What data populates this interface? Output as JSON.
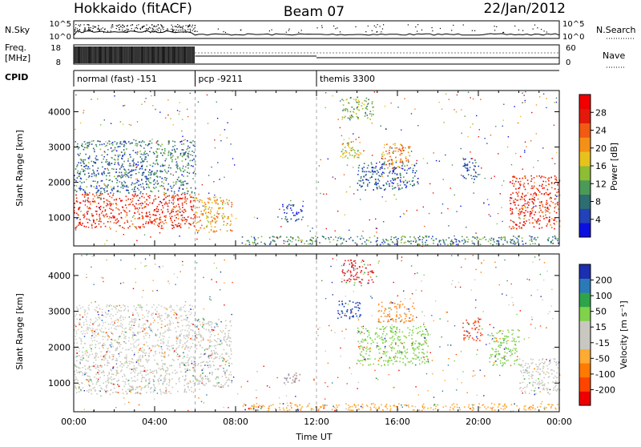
{
  "header": {
    "radar": "Hokkaido (fitACF)",
    "beam": "Beam 07",
    "date": "22/Jan/2012"
  },
  "top_strip": {
    "left_labels": [
      "N.Sky",
      "Freq.",
      "[MHz]",
      "CPID"
    ],
    "nsky_ticks": [
      "10^5",
      "10^0"
    ],
    "freq_ticks": [
      "18",
      "8"
    ],
    "nsearch_ticks": [
      "10^5",
      "10^0"
    ],
    "nave_ticks": [
      "60",
      "0"
    ],
    "right_labels": [
      "N.Search",
      "Nave"
    ],
    "cpid_segments": [
      {
        "label": "normal (fast) -151",
        "start": 0,
        "end": 6
      },
      {
        "label": "pcp -9211",
        "start": 6,
        "end": 12
      },
      {
        "label": "themis 3300",
        "start": 12,
        "end": 24
      }
    ]
  },
  "chart_data": [
    {
      "type": "heatmap",
      "name": "power",
      "ylabel": "Slant Range [km]",
      "ylim": [
        200,
        4600
      ],
      "xlim": [
        0,
        24
      ],
      "yticks": [
        1000,
        2000,
        3000,
        4000
      ],
      "colorbar_label": "Power [dB]",
      "colorbar_ticks": [
        4,
        8,
        12,
        16,
        20,
        24,
        28
      ],
      "colorbar_colors": [
        "#0a10e0",
        "#2242b8",
        "#2c6e72",
        "#4c9a58",
        "#8dbd33",
        "#e8c21c",
        "#f59017",
        "#f05a12",
        "#e31a0b",
        "#f00000"
      ],
      "echo_regions": [
        {
          "t0": 0.0,
          "t1": 6.0,
          "r0": 700,
          "r1": 1700,
          "level": 0.85
        },
        {
          "t0": 0.0,
          "t1": 6.0,
          "r0": 1700,
          "r1": 3200,
          "level": 0.25
        },
        {
          "t0": 6.0,
          "t1": 7.8,
          "r0": 600,
          "r1": 1600,
          "level": 0.6
        },
        {
          "t0": 10.3,
          "t1": 11.3,
          "r0": 900,
          "r1": 1400,
          "level": 0.15
        },
        {
          "t0": 13.2,
          "t1": 14.8,
          "r0": 3800,
          "r1": 4450,
          "level": 0.4
        },
        {
          "t0": 13.1,
          "t1": 14.2,
          "r0": 2700,
          "r1": 3200,
          "level": 0.5
        },
        {
          "t0": 15.2,
          "t1": 16.6,
          "r0": 2400,
          "r1": 3100,
          "level": 0.65
        },
        {
          "t0": 14.0,
          "t1": 17.0,
          "r0": 1800,
          "r1": 2600,
          "level": 0.2
        },
        {
          "t0": 19.2,
          "t1": 20.0,
          "r0": 2100,
          "r1": 2700,
          "level": 0.2
        },
        {
          "t0": 21.5,
          "t1": 24.0,
          "r0": 700,
          "r1": 2200,
          "level": 0.85
        },
        {
          "t0": 8.3,
          "t1": 24.0,
          "r0": 250,
          "r1": 500,
          "level": 0.3
        }
      ]
    },
    {
      "type": "heatmap",
      "name": "velocity",
      "xlabel": "Time UT",
      "ylabel": "Slant Range [km]",
      "ylim": [
        200,
        4600
      ],
      "xlim": [
        0,
        24
      ],
      "yticks": [
        1000,
        2000,
        3000,
        4000
      ],
      "xticks": [
        "00:00",
        "04:00",
        "08:00",
        "12:00",
        "16:00",
        "20:00",
        "00:00"
      ],
      "colorbar_label": "Velocity [m s⁻¹]",
      "colorbar_ticks": [
        "-200",
        "-100",
        "-50",
        "-15",
        "15",
        "50",
        "100",
        "200"
      ],
      "colorbar_colors": [
        "#ee0000",
        "#ff4400",
        "#ff7a00",
        "#ffaa33",
        "#c8c8c0",
        "#c8c8c0",
        "#7fd24a",
        "#2ea44a",
        "#2a7ab8",
        "#1b2fb0"
      ],
      "echo_regions": [
        {
          "t0": 0.0,
          "t1": 6.0,
          "r0": 700,
          "r1": 1700,
          "color": "#c8c8c0"
        },
        {
          "t0": 0.0,
          "t1": 6.0,
          "r0": 1700,
          "r1": 3200,
          "color": "#d0d0c8"
        },
        {
          "t0": 6.0,
          "t1": 7.8,
          "r0": 900,
          "r1": 2800,
          "color": "#c8c8c0"
        },
        {
          "t0": 10.3,
          "t1": 11.3,
          "r0": 1000,
          "r1": 1300,
          "color": "#9c8f9e"
        },
        {
          "t0": 13.2,
          "t1": 14.8,
          "r0": 3800,
          "r1": 4450,
          "color": "#e02020"
        },
        {
          "t0": 13.0,
          "t1": 14.2,
          "r0": 2800,
          "r1": 3300,
          "color": "#1b3fb8"
        },
        {
          "t0": 15.0,
          "t1": 16.8,
          "r0": 2700,
          "r1": 3300,
          "color": "#ff8a1c"
        },
        {
          "t0": 14.0,
          "t1": 17.5,
          "r0": 1500,
          "r1": 2600,
          "color": "#7fd24a"
        },
        {
          "t0": 19.2,
          "t1": 20.2,
          "r0": 2200,
          "r1": 2800,
          "color": "#ff3a10"
        },
        {
          "t0": 20.5,
          "t1": 22.0,
          "r0": 1500,
          "r1": 2500,
          "color": "#7fd24a"
        },
        {
          "t0": 22.0,
          "t1": 24.0,
          "r0": 700,
          "r1": 1700,
          "color": "#c8c8c0"
        },
        {
          "t0": 8.3,
          "t1": 24.0,
          "r0": 250,
          "r1": 450,
          "color": "#ffaa33"
        }
      ]
    }
  ]
}
